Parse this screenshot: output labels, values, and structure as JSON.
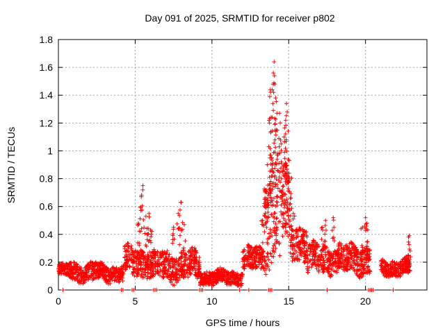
{
  "chart_data": {
    "type": "scatter",
    "title": "Day 091 of 2025, SRMTID for receiver p802",
    "xlabel": "GPS time / hours",
    "ylabel": "SRMTID / TECUs",
    "xlim": [
      0,
      24
    ],
    "ylim": [
      0,
      1.8
    ],
    "xticks": [
      0,
      5,
      10,
      15,
      20
    ],
    "yticks": [
      0,
      0.2,
      0.4,
      0.6,
      0.8,
      1,
      1.2,
      1.4,
      1.6,
      1.8
    ],
    "grid": true,
    "marker": "+",
    "color": "#ff0000",
    "segments": [
      {
        "x0": 0.0,
        "x1": 0.7,
        "base": 0.14,
        "spread": 0.05
      },
      {
        "x0": 0.7,
        "x1": 2.5,
        "base": 0.13,
        "spread": 0.08
      },
      {
        "x0": 2.5,
        "x1": 4.3,
        "base": 0.12,
        "spread": 0.07
      },
      {
        "x0": 4.3,
        "x1": 6.0,
        "base": 0.2,
        "spread": 0.12
      },
      {
        "x0": 6.0,
        "x1": 9.2,
        "base": 0.17,
        "spread": 0.12
      },
      {
        "x0": 9.2,
        "x1": 12.0,
        "base": 0.09,
        "spread": 0.06
      },
      {
        "x0": 12.0,
        "x1": 13.4,
        "base": 0.22,
        "spread": 0.1
      },
      {
        "x0": 13.4,
        "x1": 15.2,
        "base": 0.55,
        "spread": 0.4
      },
      {
        "x0": 15.2,
        "x1": 16.2,
        "base": 0.35,
        "spread": 0.15
      },
      {
        "x0": 16.2,
        "x1": 20.3,
        "base": 0.22,
        "spread": 0.12
      },
      {
        "x0": 21.0,
        "x1": 22.9,
        "base": 0.16,
        "spread": 0.07
      }
    ],
    "peaks": [
      {
        "x": 5.2,
        "y": 0.48
      },
      {
        "x": 5.4,
        "y": 0.67
      },
      {
        "x": 5.5,
        "y": 0.75
      },
      {
        "x": 5.7,
        "y": 0.53
      },
      {
        "x": 5.9,
        "y": 0.55
      },
      {
        "x": 6.0,
        "y": 0.43
      },
      {
        "x": 7.5,
        "y": 0.45
      },
      {
        "x": 7.8,
        "y": 0.55
      },
      {
        "x": 8.0,
        "y": 0.63
      },
      {
        "x": 8.2,
        "y": 0.47
      },
      {
        "x": 13.3,
        "y": 0.5
      },
      {
        "x": 13.5,
        "y": 0.72
      },
      {
        "x": 13.6,
        "y": 0.9
      },
      {
        "x": 13.7,
        "y": 1.03
      },
      {
        "x": 13.75,
        "y": 1.2
      },
      {
        "x": 13.8,
        "y": 1.44
      },
      {
        "x": 13.85,
        "y": 1.24
      },
      {
        "x": 13.9,
        "y": 0.95
      },
      {
        "x": 14.0,
        "y": 1.56
      },
      {
        "x": 14.05,
        "y": 1.64
      },
      {
        "x": 14.1,
        "y": 1.48
      },
      {
        "x": 14.15,
        "y": 1.38
      },
      {
        "x": 14.2,
        "y": 1.15
      },
      {
        "x": 14.3,
        "y": 0.98
      },
      {
        "x": 14.4,
        "y": 1.27
      },
      {
        "x": 14.5,
        "y": 1.05
      },
      {
        "x": 14.6,
        "y": 0.85
      },
      {
        "x": 14.7,
        "y": 1.1
      },
      {
        "x": 14.8,
        "y": 1.22
      },
      {
        "x": 14.85,
        "y": 1.34
      },
      {
        "x": 14.9,
        "y": 1.28
      },
      {
        "x": 15.0,
        "y": 0.8
      },
      {
        "x": 15.1,
        "y": 0.62
      },
      {
        "x": 15.3,
        "y": 0.55
      },
      {
        "x": 17.2,
        "y": 0.45
      },
      {
        "x": 17.4,
        "y": 0.5
      },
      {
        "x": 17.9,
        "y": 0.52
      },
      {
        "x": 19.8,
        "y": 0.45
      },
      {
        "x": 20.0,
        "y": 0.52
      },
      {
        "x": 20.1,
        "y": 0.48
      },
      {
        "x": 22.8,
        "y": 0.38
      },
      {
        "x": 22.85,
        "y": 0.39
      }
    ],
    "zero_points": [
      0.3,
      4.1,
      4.2,
      4.8,
      4.9,
      6.2,
      6.3,
      6.4,
      9.2,
      9.3,
      9.4,
      11.8,
      12.4,
      13.7,
      13.8,
      13.9,
      17.5,
      20.2,
      20.3,
      20.4,
      20.5,
      21.8
    ]
  }
}
